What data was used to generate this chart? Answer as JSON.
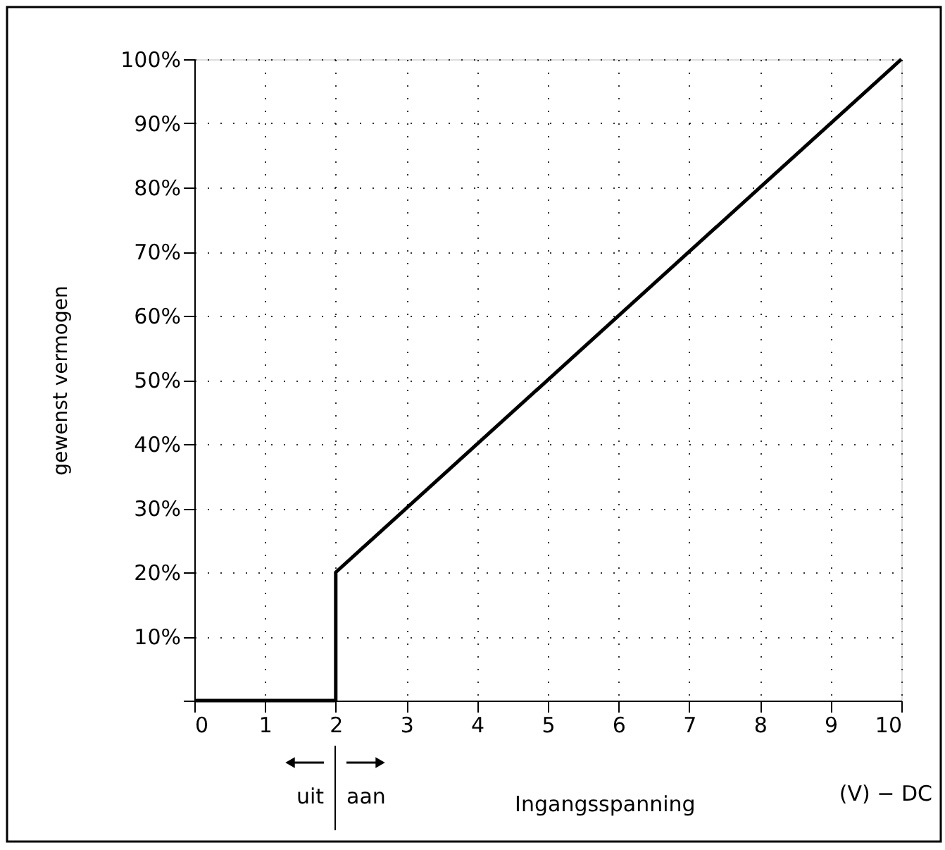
{
  "chart_data": {
    "type": "line",
    "xlabel": "Ingangsspanning",
    "ylabel": "gewenst vermogen",
    "x": [
      0,
      2,
      2,
      10
    ],
    "series": [
      {
        "color": "#000000",
        "values": [
          0,
          0,
          20,
          100
        ]
      }
    ],
    "xlim": [
      0,
      10
    ],
    "xticks": [
      0,
      1,
      2,
      3,
      4,
      5,
      6,
      7,
      8,
      9,
      10
    ],
    "ylim": [
      0,
      100
    ],
    "yticks": [
      {
        "value": 0,
        "label": null
      },
      {
        "value": 10,
        "label": "10%"
      },
      {
        "value": 20,
        "label": "20%"
      },
      {
        "value": 30,
        "label": "30%"
      },
      {
        "value": 40,
        "label": "40%"
      },
      {
        "value": 50,
        "label": "50%"
      },
      {
        "value": 60,
        "label": "60%"
      },
      {
        "value": 70,
        "label": "70%"
      },
      {
        "value": 80,
        "label": "80%"
      },
      {
        "value": 90,
        "label": "90%"
      },
      {
        "value": 100,
        "label": "100%"
      }
    ],
    "grid": true,
    "line_style": "solid",
    "marker": "none",
    "annotations": [
      "uit",
      "aan",
      "(V) − DC"
    ]
  }
}
